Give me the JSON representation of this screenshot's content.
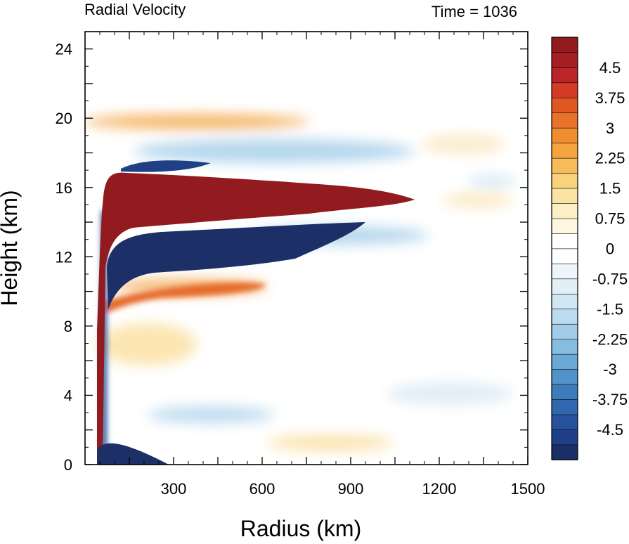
{
  "chart_data": {
    "type": "heatmap",
    "title": "Radial Velocity",
    "time_label": "Time = 1036",
    "xlabel": "Radius (km)",
    "ylabel": "Height (km)",
    "xlim": [
      0,
      1500
    ],
    "ylim": [
      0,
      25
    ],
    "xticks": [
      300,
      600,
      900,
      1200,
      1500
    ],
    "yticks": [
      0,
      4,
      8,
      12,
      16,
      20,
      24
    ],
    "colorbar": {
      "tick_labels": [
        "4.5",
        "3.75",
        "3",
        "2.25",
        "1.5",
        "0.75",
        "0",
        "-0.75",
        "-1.5",
        "-2.25",
        "-3",
        "-3.75",
        "-4.5"
      ],
      "tick_values": [
        4.5,
        3.75,
        3,
        2.25,
        1.5,
        0.75,
        0,
        -0.75,
        -1.5,
        -2.25,
        -3,
        -3.75,
        -4.5
      ],
      "min": -5.25,
      "max": 5.25,
      "step": 0.375,
      "colors": [
        "#1b2f67",
        "#1f3f86",
        "#27539e",
        "#3167ad",
        "#3d7cba",
        "#5192c8",
        "#6aa8d6",
        "#86bce0",
        "#a2cde8",
        "#bbdbee",
        "#d0e6f2",
        "#e2eff7",
        "#eef5fa",
        "#ffffff",
        "#ffffff",
        "#fdf7e1",
        "#fcefc6",
        "#fbe3a3",
        "#f9d27e",
        "#f7bc5a",
        "#f5a53f",
        "#f08d30",
        "#e87228",
        "#e15724",
        "#d33b26",
        "#bb2428",
        "#a51e22",
        "#921b1f"
      ]
    }
  }
}
